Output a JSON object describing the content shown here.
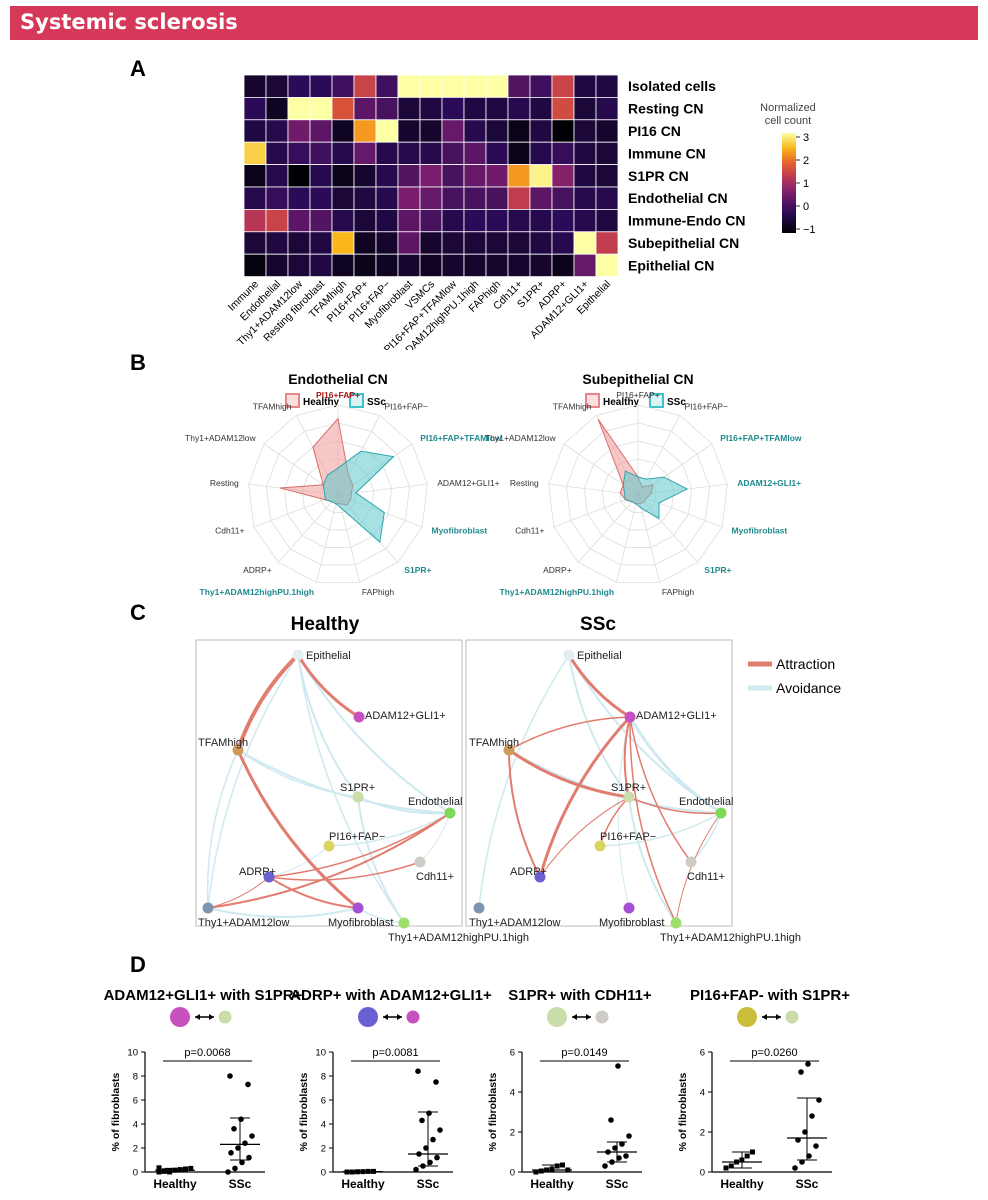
{
  "banner": {
    "title": "Systemic sclerosis"
  },
  "panels": {
    "a": "A",
    "b": "B",
    "c": "C",
    "d": "D"
  },
  "heatmap": {
    "columns": [
      "Immune",
      "Endothelial",
      "Thy1+ADAM12low",
      "Resting fibroblast",
      "TFAMhigh",
      "PI16+FAP+",
      "PI16+FAP−",
      "Myofibroblast",
      "VSMCs",
      "PI16+FAP+TFAMlow",
      "Thy1+ADAM12highPU.1high",
      "FAPhigh",
      "Cdh11+",
      "S1PR+",
      "ADRP+",
      "ADAM12+GLI1+",
      "Epithelial"
    ],
    "rows": [
      "Isolated cells",
      "Resting CN",
      "PI16 CN",
      "Immune CN",
      "S1PR CN",
      "Endothelial CN",
      "Immune-Endo CN",
      "Subepithelial CN",
      "Epithelial CN"
    ],
    "values": [
      [
        -0.6,
        -0.5,
        -0.2,
        -0.2,
        0.0,
        1.4,
        0.0,
        3.0,
        3.0,
        3.0,
        3.0,
        3.0,
        0.2,
        0.0,
        1.4,
        -0.4,
        -0.4
      ],
      [
        -0.2,
        -0.7,
        3.0,
        3.0,
        1.6,
        0.3,
        0.1,
        -0.5,
        -0.4,
        -0.2,
        -0.4,
        -0.4,
        -0.3,
        -0.4,
        1.5,
        -0.5,
        -0.3
      ],
      [
        -0.4,
        -0.3,
        0.5,
        0.3,
        -0.7,
        2.2,
        3.0,
        -0.6,
        -0.6,
        0.4,
        -0.3,
        -0.5,
        -0.8,
        -0.4,
        -1.1,
        -0.5,
        -0.6
      ],
      [
        2.6,
        -0.3,
        -0.1,
        0.0,
        -0.3,
        0.4,
        -0.3,
        -0.3,
        -0.3,
        0.1,
        0.3,
        -0.2,
        -0.8,
        -0.3,
        -0.1,
        -0.4,
        -0.5
      ],
      [
        -0.8,
        -0.3,
        -1.0,
        -0.3,
        -0.8,
        -0.6,
        -0.3,
        0.2,
        0.6,
        0.1,
        0.4,
        0.5,
        2.2,
        2.9,
        0.7,
        -0.4,
        -0.5
      ],
      [
        -0.3,
        -0.1,
        -0.2,
        -0.2,
        -0.5,
        -0.4,
        -0.3,
        0.6,
        0.4,
        0.1,
        0.1,
        0.1,
        1.3,
        0.3,
        0.1,
        -0.3,
        -0.3
      ],
      [
        1.2,
        1.4,
        0.3,
        0.2,
        -0.3,
        -0.5,
        -0.4,
        0.3,
        0.1,
        -0.3,
        -0.2,
        -0.2,
        -0.3,
        -0.3,
        -0.2,
        -0.3,
        -0.4
      ],
      [
        -0.5,
        -0.4,
        -0.5,
        -0.4,
        2.4,
        -0.7,
        -0.6,
        0.3,
        -0.6,
        -0.5,
        -0.5,
        -0.5,
        -0.5,
        -0.4,
        -0.3,
        3.0,
        1.3
      ],
      [
        -0.9,
        -0.6,
        -0.5,
        -0.4,
        -0.7,
        -0.8,
        -0.7,
        -0.6,
        -0.7,
        -0.6,
        -0.6,
        -0.6,
        -0.6,
        -0.6,
        -0.8,
        0.4,
        3.0
      ]
    ],
    "legend": {
      "title_line1": "Normalized",
      "title_line2": "cell count",
      "ticks": [
        "3",
        "2",
        "1",
        "0",
        "−1"
      ]
    }
  },
  "radar": {
    "legend_healthy": "Healthy",
    "legend_ssc": "SSc",
    "colors": {
      "healthy": "#e8868a",
      "ssc": "#3ec2c7"
    },
    "axes": [
      "PI16+FAP+",
      "PI16+FAP−",
      "PI16+FAP+TFAMlow",
      "ADAM12+GLI1+",
      "Myofibroblast",
      "S1PR+",
      "FAPhigh",
      "Thy1+ADAM12highPU.1high",
      "ADRP+",
      "Cdh11+",
      "Resting",
      "Thy1+ADAM12low",
      "TFAMhigh"
    ],
    "charts": [
      {
        "title": "Endothelial CN",
        "healthy": [
          0.85,
          0.25,
          0.2,
          0.15,
          0.15,
          0.15,
          0.1,
          0.1,
          0.1,
          0.15,
          0.65,
          0.2,
          0.6
        ],
        "ssc": [
          0.3,
          0.55,
          0.75,
          0.2,
          0.55,
          0.7,
          0.15,
          0.1,
          0.1,
          0.15,
          0.15,
          0.2,
          0.25
        ],
        "healthy_labels": [
          0
        ],
        "ssc_labels": [
          2,
          4,
          5,
          7
        ]
      },
      {
        "title": "Subepithelial CN",
        "healthy": [
          0.2,
          0.1,
          0.2,
          0.15,
          0.1,
          0.1,
          0.1,
          0.1,
          0.1,
          0.15,
          0.2,
          0.2,
          0.95
        ],
        "ssc": [
          0.2,
          0.2,
          0.35,
          0.55,
          0.25,
          0.35,
          0.15,
          0.1,
          0.1,
          0.15,
          0.15,
          0.2,
          0.3
        ],
        "healthy_labels": [],
        "ssc_labels": [
          2,
          3,
          4,
          5,
          7
        ]
      }
    ]
  },
  "network": {
    "legend_attraction": "Attraction",
    "legend_avoidance": "Avoidance",
    "colors": {
      "attraction": "#e27c6e",
      "avoidance": "#cfe9f1"
    },
    "healthy": {
      "title": "Healthy",
      "nodes": [
        {
          "id": "epi",
          "label": "Epithelial",
          "color": "#e4eef2"
        },
        {
          "id": "adam",
          "label": "ADAM12+GLI1+",
          "color": "#c851c0"
        },
        {
          "id": "tfam",
          "label": "TFAMhigh",
          "color": "#cf9a5b"
        },
        {
          "id": "s1pr",
          "label": "S1PR+",
          "color": "#c9dcaa"
        },
        {
          "id": "endo",
          "label": "Endothelial",
          "color": "#7ed957"
        },
        {
          "id": "pi16",
          "label": "PI16+FAP−",
          "color": "#d9d562"
        },
        {
          "id": "cdh",
          "label": "Cdh11+",
          "color": "#cfcbc6"
        },
        {
          "id": "adrp",
          "label": "ADRP+",
          "color": "#6b5fd1"
        },
        {
          "id": "thylow",
          "label": "Thy1+ADAM12low",
          "color": "#7d95b3"
        },
        {
          "id": "myo",
          "label": "Myofibroblast",
          "color": "#a54fd5"
        },
        {
          "id": "thyhigh",
          "label": "Thy1+ADAM12highPU.1high",
          "color": "#9fe06a"
        }
      ]
    },
    "ssc": {
      "title": "SSc",
      "nodes": [
        {
          "id": "epi",
          "label": "Epithelial",
          "color": "#e4eef2"
        },
        {
          "id": "adam",
          "label": "ADAM12+GLI1+",
          "color": "#c851c0"
        },
        {
          "id": "tfam",
          "label": "TFAMhigh",
          "color": "#cf9a5b"
        },
        {
          "id": "s1pr",
          "label": "S1PR+",
          "color": "#c9dcaa"
        },
        {
          "id": "endo",
          "label": "Endothelial",
          "color": "#7ed957"
        },
        {
          "id": "pi16",
          "label": "PI16+FAP−",
          "color": "#d9d562"
        },
        {
          "id": "cdh",
          "label": "Cdh11+",
          "color": "#cfcbc6"
        },
        {
          "id": "adrp",
          "label": "ADRP+",
          "color": "#6b5fd1"
        },
        {
          "id": "thylow",
          "label": "Thy1+ADAM12low",
          "color": "#7d95b3"
        },
        {
          "id": "myo",
          "label": "Myofibroblast",
          "color": "#a54fd5"
        },
        {
          "id": "thyhigh",
          "label": "Thy1+ADAM12highPU.1high",
          "color": "#9fe06a"
        }
      ]
    }
  },
  "chart_data": [
    {
      "type": "scatter",
      "title": "ADAM12+GLI1+ with S1PR+",
      "xlabel": "",
      "ylabel": "% of fibroblasts",
      "categories": [
        "Healthy",
        "SSc"
      ],
      "ylim": [
        0,
        10
      ],
      "yticks": [
        0,
        2,
        4,
        6,
        8,
        10
      ],
      "pvalue": "p=0.0068",
      "dot_colors": [
        "#c851c0",
        "#c9dcaa"
      ],
      "healthy": [
        0.0,
        0.05,
        0.1,
        0.15,
        0.2,
        0.25,
        0.3,
        0.35,
        0.1,
        0.0
      ],
      "ssc": [
        0.0,
        0.3,
        0.8,
        1.2,
        1.6,
        2.0,
        2.4,
        3.0,
        3.6,
        4.4,
        7.3,
        8.0
      ],
      "healthy_summary": {
        "median": 0.15,
        "q1": 0.05,
        "q3": 0.3
      },
      "ssc_summary": {
        "median": 2.3,
        "q1": 1.0,
        "q3": 4.5
      }
    },
    {
      "type": "scatter",
      "title": "ADRP+ with ADAM12+GLI1+",
      "xlabel": "",
      "ylabel": "% of fibroblasts",
      "categories": [
        "Healthy",
        "SSc"
      ],
      "ylim": [
        0,
        10
      ],
      "yticks": [
        0,
        2,
        4,
        6,
        8,
        10
      ],
      "pvalue": "p=0.0081",
      "dot_colors": [
        "#6b5fd1",
        "#c851c0"
      ],
      "healthy": [
        0.0,
        0.0,
        0.02,
        0.03,
        0.05,
        0.05
      ],
      "ssc": [
        0.2,
        0.5,
        0.8,
        1.2,
        1.5,
        2.0,
        2.7,
        3.5,
        4.3,
        4.9,
        7.5,
        8.4
      ],
      "healthy_summary": {
        "median": 0.03,
        "q1": 0.0,
        "q3": 0.05
      },
      "ssc_summary": {
        "median": 1.5,
        "q1": 0.5,
        "q3": 5.0
      }
    },
    {
      "type": "scatter",
      "title": "S1PR+ with CDH11+",
      "xlabel": "",
      "ylabel": "% of fibroblasts",
      "categories": [
        "Healthy",
        "SSc"
      ],
      "ylim": [
        0,
        6
      ],
      "yticks": [
        0,
        2,
        4,
        6
      ],
      "pvalue": "p=0.0149",
      "dot_colors": [
        "#c9dcaa",
        "#cfcbc6"
      ],
      "healthy": [
        0.0,
        0.05,
        0.1,
        0.15,
        0.3,
        0.35,
        0.1
      ],
      "ssc": [
        0.3,
        0.5,
        0.7,
        0.8,
        1.0,
        1.2,
        1.4,
        1.8,
        2.6,
        5.3
      ],
      "healthy_summary": {
        "median": 0.1,
        "q1": 0.0,
        "q3": 0.35
      },
      "ssc_summary": {
        "median": 1.0,
        "q1": 0.5,
        "q3": 1.5
      }
    },
    {
      "type": "scatter",
      "title": "PI16+FAP- with S1PR+",
      "xlabel": "",
      "ylabel": "% of fibroblasts",
      "categories": [
        "Healthy",
        "SSc"
      ],
      "ylim": [
        0,
        6
      ],
      "yticks": [
        0,
        2,
        4,
        6
      ],
      "pvalue": "p=0.0260",
      "dot_colors": [
        "#c9bd3a",
        "#c9dcaa"
      ],
      "healthy": [
        0.2,
        0.3,
        0.5,
        0.6,
        0.8,
        1.0
      ],
      "ssc": [
        0.2,
        0.5,
        0.8,
        1.3,
        1.6,
        2.0,
        2.8,
        3.6,
        5.0,
        5.4
      ],
      "healthy_summary": {
        "median": 0.5,
        "q1": 0.2,
        "q3": 1.0
      },
      "ssc_summary": {
        "median": 1.7,
        "q1": 0.6,
        "q3": 3.7
      }
    }
  ]
}
